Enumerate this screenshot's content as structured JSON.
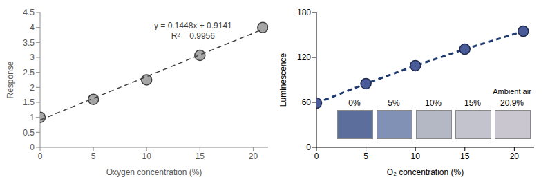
{
  "chart_data": [
    {
      "type": "scatter",
      "x_label": "Oxygen concentration (%)",
      "y_label": "Response",
      "annotations": [
        "y = 0.1448x + 0.9141",
        "R² = 0.9956"
      ],
      "xlim": [
        0,
        21.4
      ],
      "xticks": [
        0,
        5,
        10,
        15,
        20
      ],
      "ylim": [
        0,
        4.5
      ],
      "yticks": [
        0,
        0.5,
        1,
        1.5,
        2,
        2.5,
        3,
        3.5,
        4,
        4.5
      ],
      "grid": false,
      "series": [
        {
          "x": [
            0,
            5,
            10,
            15,
            20.9
          ],
          "values": [
            1,
            1.6,
            2.25,
            3.07,
            4.0
          ],
          "color": "#a6a6a6",
          "marker": "circle"
        },
        {
          "type": "line",
          "x": [
            0,
            20.9
          ],
          "values": [
            0.91,
            3.94
          ],
          "color": "#404040",
          "line_style": "dashed"
        }
      ]
    },
    {
      "type": "scatter",
      "x_label": "O₂ concentration (%)",
      "y_label": "Luminescence",
      "annotations": [
        "Ambient air"
      ],
      "inset_labels": [
        "0%",
        "5%",
        "10%",
        "15%",
        "20.9%"
      ],
      "xlim": [
        0,
        22
      ],
      "xticks": [
        0,
        5,
        10,
        15,
        20
      ],
      "ylim": [
        0,
        180
      ],
      "yticks": [
        0,
        60,
        120,
        180
      ],
      "grid": false,
      "series": [
        {
          "x": [
            0,
            5,
            10,
            15,
            20.9
          ],
          "values": [
            59,
            85,
            109,
            131,
            155
          ],
          "color": "#4a5b9a",
          "marker": "circle",
          "line_style": "dashed"
        }
      ]
    }
  ]
}
